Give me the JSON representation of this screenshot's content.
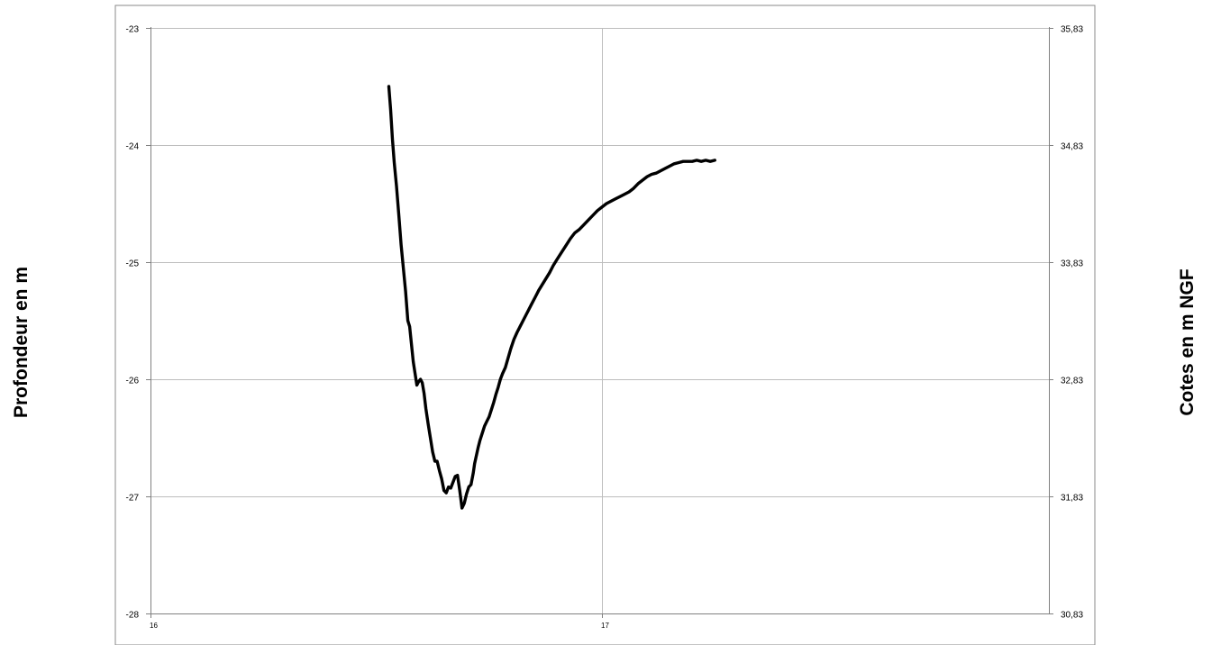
{
  "chart_data": {
    "type": "line",
    "title": "",
    "ylabel_left": "Profondeur en m",
    "ylabel_right": "Cotes en m NGF",
    "xlim": [
      16,
      17.99
    ],
    "ylim": [
      -28,
      -23
    ],
    "y2lim": [
      30.83,
      35.83
    ],
    "x_ticks": [
      "16",
      "17"
    ],
    "y_ticks": [
      "-28",
      "-27",
      "-26",
      "-25",
      "-24",
      "-23"
    ],
    "y2_ticks": [
      "30,83",
      "31,83",
      "32,83",
      "33,83",
      "34,83",
      "35,83"
    ],
    "grid": true,
    "line_color": "#000000",
    "series": [
      {
        "x": [
          16.528,
          16.532,
          16.536,
          16.54,
          16.545,
          16.55,
          16.555,
          16.56,
          16.565,
          16.57,
          16.574,
          16.578,
          16.582,
          16.586,
          16.59,
          16.594,
          16.598,
          16.602,
          16.606,
          16.61,
          16.615,
          16.62,
          16.625,
          16.63,
          16.635,
          16.64,
          16.645,
          16.65,
          16.655,
          16.66,
          16.665,
          16.67,
          16.675,
          16.68,
          16.685,
          16.69,
          16.695,
          16.7,
          16.705,
          16.71,
          16.712,
          16.715,
          16.718,
          16.722,
          16.726,
          16.73,
          16.735,
          16.74,
          16.745,
          16.75,
          16.755,
          16.76,
          16.765,
          16.77,
          16.775,
          16.78,
          16.786,
          16.792,
          16.798,
          16.805,
          16.812,
          16.82,
          16.828,
          16.836,
          16.844,
          16.852,
          16.86,
          16.868,
          16.876,
          16.884,
          16.892,
          16.9,
          16.91,
          16.92,
          16.93,
          16.94,
          16.95,
          16.96,
          16.97,
          16.98,
          16.99,
          17.0,
          17.01,
          17.02,
          17.03,
          17.04,
          17.05,
          17.06,
          17.07,
          17.08,
          17.09,
          17.1,
          17.11,
          17.12,
          17.13,
          17.14,
          17.15,
          17.16,
          17.17,
          17.18,
          17.19,
          17.2,
          17.21,
          17.22,
          17.23,
          17.24,
          17.25
        ],
        "y": [
          -23.5,
          -23.7,
          -23.95,
          -24.15,
          -24.35,
          -24.6,
          -24.85,
          -25.05,
          -25.25,
          -25.5,
          -25.55,
          -25.7,
          -25.85,
          -25.95,
          -26.05,
          -26.02,
          -26.0,
          -26.03,
          -26.12,
          -26.25,
          -26.38,
          -26.5,
          -26.62,
          -26.7,
          -26.7,
          -26.78,
          -26.85,
          -26.95,
          -26.97,
          -26.92,
          -26.93,
          -26.88,
          -26.83,
          -26.82,
          -26.95,
          -27.1,
          -27.06,
          -26.98,
          -26.92,
          -26.9,
          -26.86,
          -26.8,
          -26.72,
          -26.65,
          -26.58,
          -26.52,
          -26.46,
          -26.4,
          -26.36,
          -26.32,
          -26.26,
          -26.2,
          -26.13,
          -26.07,
          -26.0,
          -25.95,
          -25.9,
          -25.82,
          -25.74,
          -25.66,
          -25.6,
          -25.54,
          -25.48,
          -25.42,
          -25.36,
          -25.3,
          -25.24,
          -25.19,
          -25.14,
          -25.09,
          -25.03,
          -24.98,
          -24.92,
          -24.86,
          -24.8,
          -24.75,
          -24.72,
          -24.68,
          -24.64,
          -24.6,
          -24.56,
          -24.53,
          -24.5,
          -24.48,
          -24.46,
          -24.44,
          -24.42,
          -24.4,
          -24.37,
          -24.33,
          -24.3,
          -24.27,
          -24.25,
          -24.24,
          -24.22,
          -24.2,
          -24.18,
          -24.16,
          -24.15,
          -24.14,
          -24.14,
          -24.14,
          -24.13,
          -24.14,
          -24.13,
          -24.14,
          -24.13
        ]
      }
    ]
  }
}
